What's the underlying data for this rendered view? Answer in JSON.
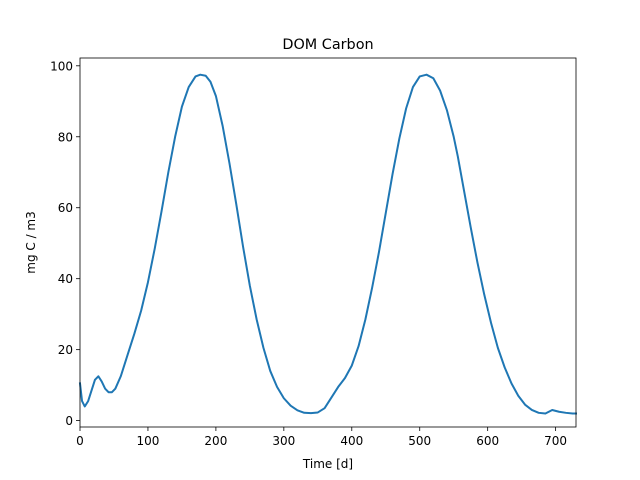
{
  "chart_data": {
    "type": "line",
    "title": "DOM Carbon",
    "xlabel": "Time [d]",
    "ylabel": "mg C / m3",
    "xlim": [
      0,
      730
    ],
    "ylim": [
      -1.8,
      102.2
    ],
    "xticks": [
      0,
      100,
      200,
      300,
      400,
      500,
      600,
      700
    ],
    "yticks": [
      0,
      20,
      40,
      60,
      80,
      100
    ],
    "grid": false,
    "series": [
      {
        "color": "#1f77b4",
        "x": [
          0,
          3,
          7,
          12,
          17,
          22,
          27,
          32,
          37,
          42,
          47,
          52,
          60,
          70,
          80,
          90,
          100,
          110,
          120,
          130,
          140,
          150,
          160,
          170,
          177,
          185,
          192,
          200,
          210,
          220,
          230,
          240,
          250,
          260,
          270,
          280,
          290,
          300,
          310,
          320,
          330,
          340,
          350,
          360,
          370,
          380,
          390,
          400,
          410,
          420,
          430,
          440,
          450,
          460,
          470,
          480,
          490,
          500,
          510,
          520,
          530,
          540,
          550,
          556,
          565,
          575,
          585,
          595,
          605,
          615,
          625,
          635,
          645,
          655,
          665,
          675,
          685,
          695,
          705,
          715,
          725,
          730
        ],
        "y": [
          10.5,
          5.5,
          4.0,
          5.5,
          8.5,
          11.5,
          12.5,
          11.0,
          9.0,
          8.0,
          8.0,
          9.0,
          12.5,
          18.5,
          24.5,
          31.0,
          39.0,
          48.5,
          59.0,
          70.0,
          80.0,
          88.5,
          94.0,
          97.0,
          97.5,
          97.2,
          95.5,
          91.5,
          83.0,
          72.5,
          61.0,
          49.0,
          38.0,
          28.5,
          20.5,
          14.0,
          9.5,
          6.3,
          4.2,
          2.9,
          2.2,
          2.1,
          2.3,
          3.5,
          6.5,
          9.5,
          12.0,
          15.5,
          21.0,
          28.5,
          37.5,
          47.5,
          58.5,
          69.5,
          79.5,
          88.0,
          94.0,
          97.0,
          97.5,
          96.5,
          93.0,
          87.5,
          80.0,
          74.5,
          65.0,
          54.5,
          44.5,
          35.5,
          27.5,
          20.5,
          15.0,
          10.5,
          7.0,
          4.5,
          3.0,
          2.2,
          2.0,
          3.0,
          2.5,
          2.2,
          2.0,
          2.0
        ]
      }
    ]
  }
}
